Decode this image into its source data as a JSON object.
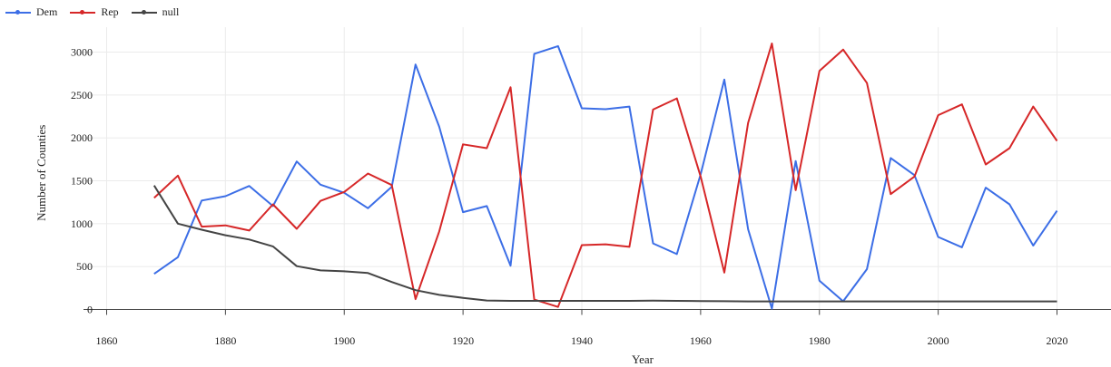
{
  "chart_data": {
    "type": "line",
    "title": "",
    "xlabel": "Year",
    "ylabel": "Number of Counties",
    "xlim": [
      1857,
      1208
    ],
    "ylim": [
      -40,
      3200
    ],
    "x_ticks": [
      1860,
      1880,
      1900,
      1920,
      1940,
      1960,
      1980,
      2000,
      2020
    ],
    "y_ticks": [
      0,
      500,
      1000,
      1500,
      2000,
      2500,
      3000
    ],
    "grid": true,
    "legend_position": "top-left",
    "x": [
      1868,
      1872,
      1876,
      1880,
      1884,
      1888,
      1892,
      1896,
      1900,
      1904,
      1908,
      1912,
      1916,
      1920,
      1924,
      1928,
      1932,
      1936,
      1940,
      1944,
      1948,
      1952,
      1956,
      1960,
      1964,
      1968,
      1972,
      1976,
      1980,
      1984,
      1988,
      1992,
      1996,
      2000,
      2004,
      2008,
      2012,
      2016,
      2020
    ],
    "series": [
      {
        "name": "Dem",
        "color": "#3c6ee6",
        "values": [
          415,
          610,
          1270,
          1320,
          1440,
          1205,
          1725,
          1455,
          1360,
          1180,
          1430,
          2855,
          2130,
          1135,
          1205,
          510,
          2980,
          3070,
          2345,
          2335,
          2365,
          770,
          645,
          1575,
          2680,
          935,
          10,
          1730,
          335,
          95,
          470,
          1765,
          1565,
          845,
          725,
          1420,
          1225,
          745,
          1150
        ]
      },
      {
        "name": "Rep",
        "color": "#d62728",
        "values": [
          1300,
          1560,
          965,
          980,
          920,
          1225,
          940,
          1265,
          1370,
          1585,
          1450,
          120,
          910,
          1925,
          1880,
          2590,
          115,
          30,
          750,
          760,
          730,
          2330,
          2460,
          1550,
          430,
          2175,
          3100,
          1390,
          2780,
          3030,
          2640,
          1345,
          1550,
          2265,
          2390,
          1690,
          1880,
          2365,
          1965
        ]
      },
      {
        "name": "null",
        "color": "#444444",
        "values": [
          1445,
          1000,
          930,
          865,
          815,
          735,
          505,
          455,
          445,
          425,
          320,
          225,
          170,
          135,
          105,
          100,
          100,
          100,
          100,
          100,
          100,
          102,
          100,
          98,
          96,
          94,
          94,
          94,
          94,
          94,
          94,
          94,
          94,
          94,
          94,
          94,
          94,
          94,
          94
        ]
      }
    ]
  }
}
